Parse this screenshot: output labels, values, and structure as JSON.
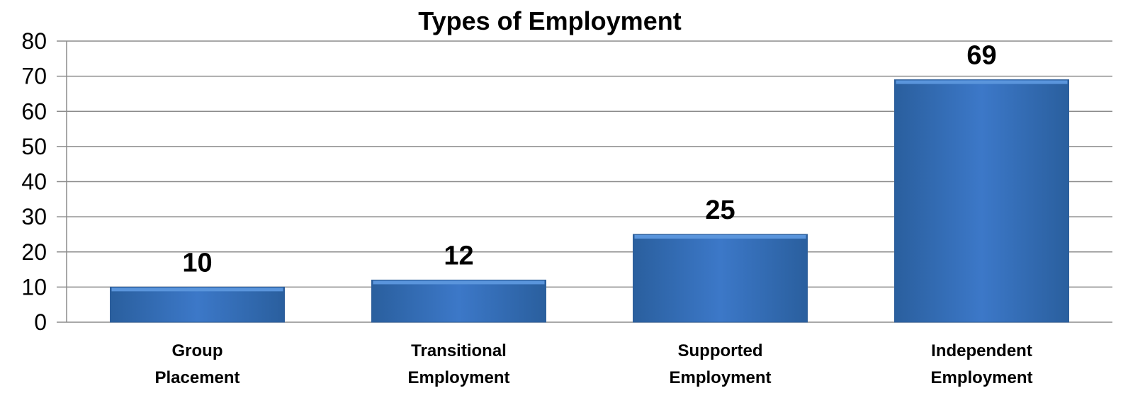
{
  "chart_data": {
    "type": "bar",
    "title": "Types of Employment",
    "categories": [
      [
        "Group",
        "Placement"
      ],
      [
        "Transitional",
        "Employment"
      ],
      [
        "Supported",
        "Employment"
      ],
      [
        "Independent",
        "Employment"
      ]
    ],
    "values": [
      10,
      12,
      25,
      69
    ],
    "data_labels": [
      "10",
      "12",
      "25",
      "69"
    ],
    "ylim": [
      0,
      80
    ],
    "yticks": [
      0,
      10,
      20,
      30,
      40,
      50,
      60,
      70,
      80
    ],
    "grid": true,
    "legend": "none",
    "colors": {
      "bar": "#3c78c8",
      "bar_light": "#5a95dc",
      "bar_dark": "#2a5f9e"
    }
  }
}
